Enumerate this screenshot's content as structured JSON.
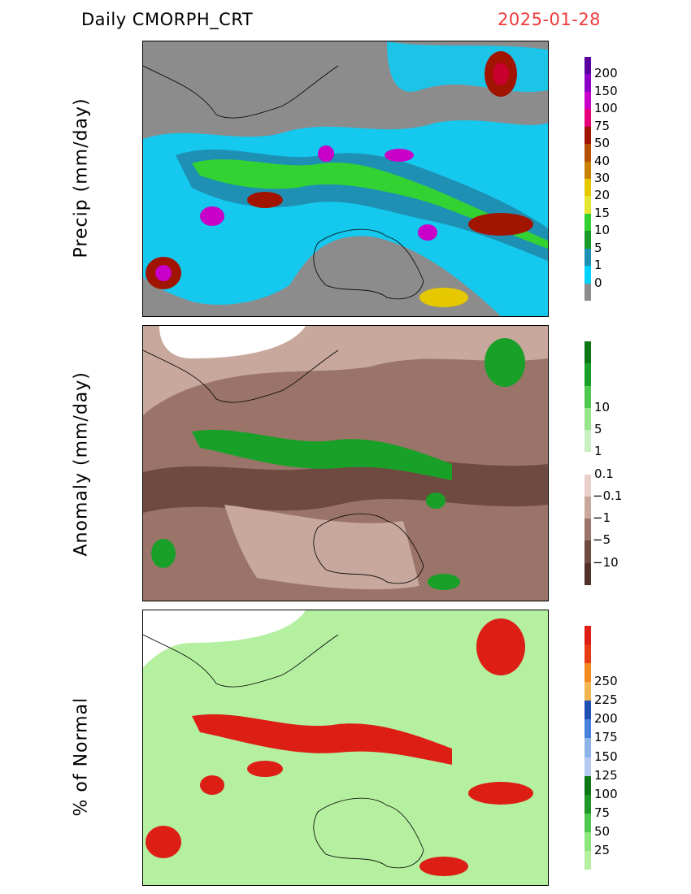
{
  "header": {
    "left_title": "Daily  CMORPH_CRT",
    "date": "2025-01-28"
  },
  "panels": [
    {
      "id": "precip",
      "ylabel": "Precip  (mm/day)",
      "colorbar": {
        "colors": [
          "#8c8c8c",
          "#00d2ff",
          "#1e90b4",
          "#1a9a28",
          "#32d232",
          "#e6e632",
          "#e6c800",
          "#c88200",
          "#b45000",
          "#a01400",
          "#e6007a",
          "#c800c8",
          "#8c00c8",
          "#5a00a0"
        ],
        "ticks": [
          "0",
          "1",
          "5",
          "10",
          "15",
          "20",
          "30",
          "40",
          "50",
          "75",
          "100",
          "150",
          "200"
        ]
      }
    },
    {
      "id": "anomaly",
      "ylabel": "Anomaly  (mm/day)",
      "colorbar": {
        "colors": [
          "#503028",
          "#6e4a40",
          "#9a7468",
          "#c8a89c",
          "#e8d0c8",
          "#ffffff",
          "#c8f0c0",
          "#96e68c",
          "#50c850",
          "#18a028",
          "#0a7814"
        ],
        "ticks": [
          "−10",
          "−5",
          "−1",
          "−0.1",
          "0.1",
          "1",
          "5",
          "10"
        ]
      }
    },
    {
      "id": "percent",
      "ylabel": "% of  Normal",
      "colorbar": {
        "colors": [
          "#b4f0a0",
          "#8ce67c",
          "#50c850",
          "#1e9628",
          "#0a7814",
          "#b4c8f0",
          "#8cb4e6",
          "#4682dc",
          "#1e50b4",
          "#f0b450",
          "#f08c1e",
          "#e63c14",
          "#dc1e14"
        ],
        "ticks": [
          "25",
          "50",
          "75",
          "100",
          "125",
          "150",
          "175",
          "200",
          "225",
          "250"
        ]
      }
    }
  ]
}
